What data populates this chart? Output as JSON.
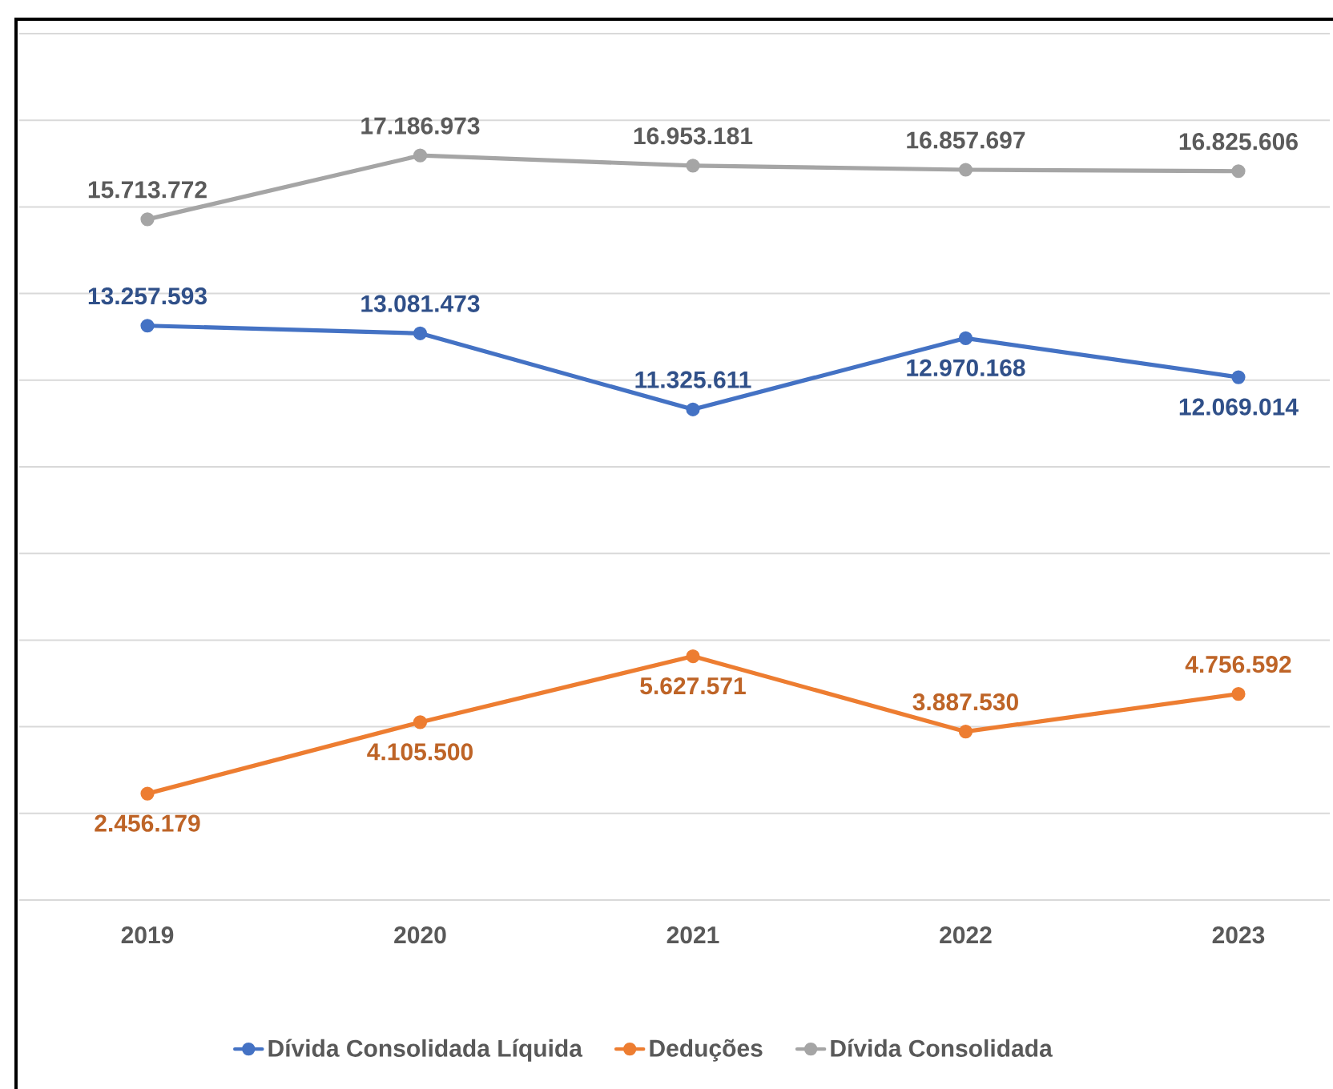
{
  "chart_data": {
    "type": "line",
    "categories": [
      "2019",
      "2020",
      "2021",
      "2022",
      "2023"
    ],
    "series": [
      {
        "name": "Dívida Consolidada Líquida",
        "color": "#4472c4",
        "values": [
          13257593,
          13081473,
          11325611,
          12970168,
          12069014
        ],
        "value_labels": [
          "13.257.593",
          "13.081.473",
          "11.325.611",
          "12.970.168",
          "12.069.014"
        ]
      },
      {
        "name": "Deduções",
        "color": "#ed7d31",
        "values": [
          2456179,
          4105500,
          5627571,
          3887530,
          4756592
        ],
        "value_labels": [
          "2.456.179",
          "4.105.500",
          "5.627.571",
          "3.887.530",
          "4.756.592"
        ]
      },
      {
        "name": "Dívida Consolidada",
        "color": "#a5a5a5",
        "values": [
          15713772,
          17186973,
          16953181,
          16857697,
          16825606
        ],
        "value_labels": [
          "15.713.772",
          "17.186.973",
          "16.953.181",
          "16.857.697",
          "16.825.606"
        ]
      }
    ],
    "ylim": [
      0,
      20000000
    ],
    "yticks": [
      {
        "value": 0,
        "label": null
      },
      {
        "value": 2000000,
        "label": null
      },
      {
        "value": 4000000,
        "label": null
      },
      {
        "value": 6000000,
        "label": null
      },
      {
        "value": 8000000,
        "label": null
      },
      {
        "value": 10000000,
        "label": null
      },
      {
        "value": 12000000,
        "label": null
      },
      {
        "value": 14000000,
        "label": null
      },
      {
        "value": 16000000,
        "label": null
      },
      {
        "value": 18000000,
        "label": null
      },
      {
        "value": 20000000,
        "label": null
      }
    ],
    "grid": "y",
    "legend": "bottom",
    "marker": "circle",
    "tick_labels": "x"
  }
}
